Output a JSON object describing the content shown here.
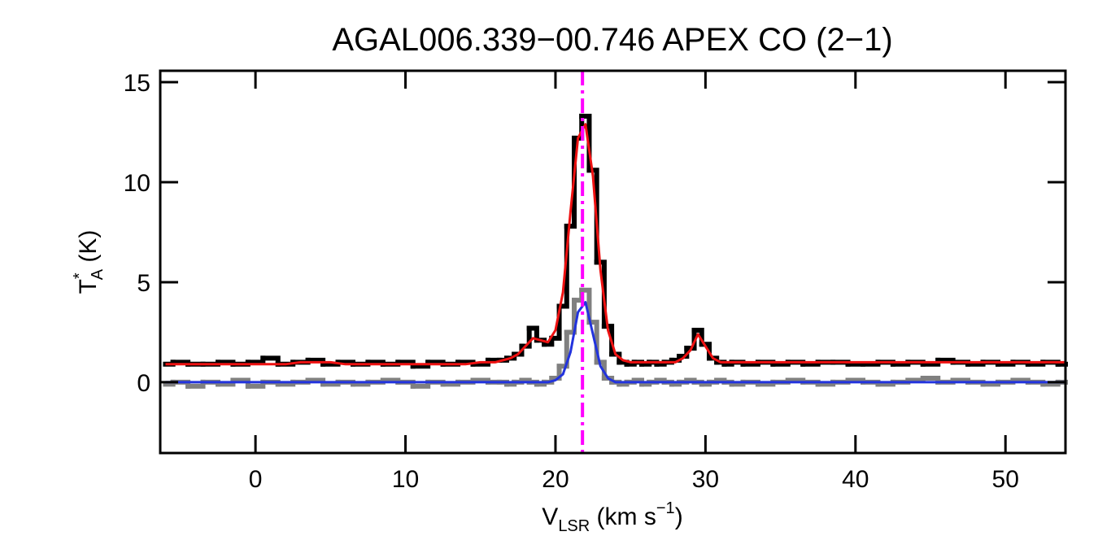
{
  "chart_data": {
    "type": "line",
    "title": "AGAL006.339−00.746  APEX CO (2−1)",
    "x_label": {
      "main": "V",
      "sub": "LSR",
      "rest": " (km s",
      "sup": "−1",
      "end": ")"
    },
    "y_label": {
      "main": "T",
      "sup": "*",
      "sub": "A",
      "rest": " (K)"
    },
    "xlim": [
      -6.35,
      54.0
    ],
    "ylim": [
      -3.54,
      15.57
    ],
    "xticks": [
      0,
      10,
      20,
      30,
      40,
      50
    ],
    "yticks": [
      0,
      5,
      10,
      15
    ],
    "vline": {
      "x": 21.8,
      "color": "#ff00ff"
    },
    "x": [
      -6,
      -5,
      -4,
      -3,
      -2,
      -1,
      0,
      1,
      2,
      3,
      4,
      5,
      6,
      7,
      8,
      9,
      10,
      11,
      12,
      13,
      14,
      15,
      16,
      16.5,
      17,
      17.5,
      18,
      18.5,
      19,
      19.5,
      20,
      20.5,
      21,
      21.5,
      22,
      22.5,
      23,
      23.5,
      24,
      24.5,
      25,
      25.5,
      26,
      26.5,
      27,
      27.5,
      28,
      28.5,
      29,
      29.5,
      30,
      30.5,
      31,
      31.5,
      32,
      33,
      34,
      35,
      36,
      37,
      38,
      39,
      40,
      41,
      42,
      43,
      44,
      45,
      46,
      47,
      48,
      49,
      50,
      51,
      52,
      53,
      54
    ],
    "series": [
      {
        "color": "#808080",
        "step": true,
        "values": [
          -0.1,
          0,
          -0.2,
          0,
          -0.1,
          0.1,
          -0.2,
          0,
          -0.1,
          0,
          0.1,
          -0.1,
          0,
          -0.1,
          0,
          0.1,
          0,
          -0.2,
          0,
          -0.1,
          0,
          0.1,
          0,
          0,
          -0.1,
          0,
          0.1,
          0,
          -0.1,
          0,
          0.2,
          0.8,
          2.5,
          4.1,
          4.6,
          3.0,
          1.0,
          0.2,
          0,
          -0.1,
          0,
          0.1,
          -0.1,
          0,
          0.1,
          0,
          -0.1,
          0,
          0.1,
          0,
          -0.1,
          0,
          0.1,
          0,
          -0.1,
          0,
          -0.1,
          0,
          0.1,
          0,
          -0.1,
          0,
          0.1,
          0,
          -0.1,
          0,
          0.1,
          0.2,
          0,
          0.1,
          0,
          -0.1,
          0,
          0.1,
          0,
          -0.1,
          0
        ]
      },
      {
        "color": "#000000",
        "step": true,
        "values": [
          0.9,
          1.0,
          0.9,
          0.9,
          1.0,
          0.9,
          1.0,
          1.2,
          0.9,
          1.0,
          1.1,
          0.9,
          1.0,
          0.9,
          1.0,
          0.9,
          1.0,
          0.8,
          1.0,
          0.9,
          1.0,
          0.9,
          1.1,
          1.1,
          1.2,
          1.4,
          1.8,
          2.7,
          2.1,
          1.9,
          2.2,
          3.8,
          7.8,
          12.2,
          13.3,
          10.6,
          6.0,
          2.8,
          1.4,
          1.0,
          0.9,
          1.0,
          0.9,
          1.0,
          0.9,
          1.0,
          1.1,
          1.3,
          1.7,
          2.6,
          1.9,
          1.2,
          1.0,
          0.9,
          1.0,
          0.9,
          1.0,
          0.9,
          1.0,
          0.9,
          1.0,
          1.0,
          0.9,
          0.9,
          1.0,
          0.9,
          1.0,
          0.9,
          1.1,
          1.0,
          0.9,
          1.0,
          0.9,
          1.0,
          0.9,
          1.0,
          0.9
        ]
      },
      {
        "color": "#ee1111",
        "step": false,
        "values": [
          0.9,
          0.9,
          0.9,
          0.9,
          0.9,
          0.9,
          0.9,
          0.9,
          0.9,
          1.0,
          1.0,
          1.0,
          0.9,
          0.9,
          0.9,
          0.9,
          0.9,
          0.9,
          0.9,
          0.9,
          0.9,
          1.0,
          1.0,
          1.1,
          1.2,
          1.4,
          1.8,
          2.2,
          2.1,
          2.0,
          2.6,
          4.5,
          8.5,
          12.2,
          12.9,
          10.3,
          5.6,
          2.6,
          1.4,
          1.1,
          1.0,
          1.0,
          1.0,
          1.0,
          1.0,
          1.0,
          1.0,
          1.2,
          1.6,
          2.4,
          1.8,
          1.2,
          1.0,
          1.0,
          1.0,
          1.0,
          1.0,
          1.0,
          1.0,
          1.0,
          1.0,
          1.0,
          1.0,
          1.0,
          1.0,
          1.0,
          1.0,
          1.0,
          1.0,
          1.0,
          1.0,
          1.0,
          1.0,
          1.0,
          1.0,
          1.0,
          1.0
        ]
      },
      {
        "color": "#2233dd",
        "step": false,
        "values": [
          0,
          0,
          0,
          0,
          0,
          0,
          0,
          0,
          0,
          0,
          0,
          0,
          0,
          0,
          0,
          0,
          0,
          0,
          0,
          0,
          0,
          0,
          0,
          0,
          0,
          0,
          0,
          0,
          0,
          0,
          0.1,
          0.4,
          1.5,
          3.5,
          4.0,
          2.4,
          0.8,
          0.2,
          0,
          0,
          0,
          0,
          0,
          0,
          0,
          0,
          0,
          0,
          0,
          0,
          0,
          0,
          0,
          0,
          0,
          0,
          0,
          0,
          0,
          0,
          0,
          0,
          0,
          0,
          0,
          0,
          0,
          0,
          0,
          0,
          0,
          0,
          0,
          0,
          0,
          0,
          0
        ]
      }
    ]
  }
}
